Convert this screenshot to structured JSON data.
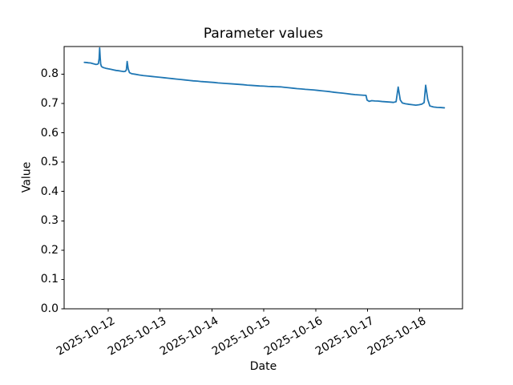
{
  "figure": {
    "kind": "matplotlib-line-plot"
  },
  "chart_data": {
    "type": "line",
    "title": "Parameter values",
    "xlabel": "Date",
    "ylabel": "Value",
    "line_color": "#1f77b4",
    "grid": false,
    "legend": null,
    "x_unit": "days since 2025-10-12",
    "xlim": [
      -0.85,
      6.83
    ],
    "ylim": [
      0,
      0.894
    ],
    "xticks": [
      {
        "t": 0,
        "label": "2025-10-12"
      },
      {
        "t": 1,
        "label": "2025-10-13"
      },
      {
        "t": 2,
        "label": "2025-10-14"
      },
      {
        "t": 3,
        "label": "2025-10-15"
      },
      {
        "t": 4,
        "label": "2025-10-16"
      },
      {
        "t": 5,
        "label": "2025-10-17"
      },
      {
        "t": 6,
        "label": "2025-10-18"
      }
    ],
    "yticks": [
      {
        "v": 0.0,
        "label": "0.0"
      },
      {
        "v": 0.1,
        "label": "0.1"
      },
      {
        "v": 0.2,
        "label": "0.2"
      },
      {
        "v": 0.3,
        "label": "0.3"
      },
      {
        "v": 0.4,
        "label": "0.4"
      },
      {
        "v": 0.5,
        "label": "0.5"
      },
      {
        "v": 0.6,
        "label": "0.6"
      },
      {
        "v": 0.7,
        "label": "0.7"
      },
      {
        "v": 0.8,
        "label": "0.8"
      }
    ],
    "points": [
      [
        -0.46,
        0.84
      ],
      [
        -0.42,
        0.8395
      ],
      [
        -0.38,
        0.8385
      ],
      [
        -0.34,
        0.838
      ],
      [
        -0.3,
        0.836
      ],
      [
        -0.27,
        0.8345
      ],
      [
        -0.24,
        0.833
      ],
      [
        -0.21,
        0.8335
      ],
      [
        -0.19,
        0.8355
      ],
      [
        -0.175,
        0.853
      ],
      [
        -0.165,
        0.889
      ],
      [
        -0.155,
        0.857
      ],
      [
        -0.145,
        0.834
      ],
      [
        -0.13,
        0.826
      ],
      [
        -0.1,
        0.8225
      ],
      [
        -0.05,
        0.82
      ],
      [
        0.0,
        0.818
      ],
      [
        0.05,
        0.8165
      ],
      [
        0.1,
        0.8145
      ],
      [
        0.15,
        0.8125
      ],
      [
        0.2,
        0.8115
      ],
      [
        0.25,
        0.81
      ],
      [
        0.3,
        0.8085
      ],
      [
        0.33,
        0.8095
      ],
      [
        0.35,
        0.8145
      ],
      [
        0.365,
        0.843
      ],
      [
        0.385,
        0.818
      ],
      [
        0.41,
        0.805
      ],
      [
        0.45,
        0.8015
      ],
      [
        0.52,
        0.7995
      ],
      [
        0.6,
        0.797
      ],
      [
        0.68,
        0.795
      ],
      [
        0.76,
        0.7935
      ],
      [
        0.84,
        0.792
      ],
      [
        0.92,
        0.7905
      ],
      [
        1.0,
        0.789
      ],
      [
        1.08,
        0.7875
      ],
      [
        1.16,
        0.786
      ],
      [
        1.24,
        0.7845
      ],
      [
        1.32,
        0.783
      ],
      [
        1.4,
        0.7815
      ],
      [
        1.48,
        0.78
      ],
      [
        1.56,
        0.7785
      ],
      [
        1.64,
        0.777
      ],
      [
        1.72,
        0.776
      ],
      [
        1.8,
        0.7745
      ],
      [
        1.88,
        0.7735
      ],
      [
        1.96,
        0.7725
      ],
      [
        2.04,
        0.7715
      ],
      [
        2.12,
        0.77
      ],
      [
        2.2,
        0.769
      ],
      [
        2.28,
        0.768
      ],
      [
        2.36,
        0.767
      ],
      [
        2.44,
        0.766
      ],
      [
        2.52,
        0.765
      ],
      [
        2.6,
        0.764
      ],
      [
        2.68,
        0.7625
      ],
      [
        2.76,
        0.7615
      ],
      [
        2.84,
        0.7605
      ],
      [
        2.92,
        0.7595
      ],
      [
        3.0,
        0.759
      ],
      [
        3.08,
        0.758
      ],
      [
        3.16,
        0.7575
      ],
      [
        3.24,
        0.757
      ],
      [
        3.32,
        0.7565
      ],
      [
        3.4,
        0.755
      ],
      [
        3.48,
        0.7535
      ],
      [
        3.56,
        0.752
      ],
      [
        3.64,
        0.7505
      ],
      [
        3.72,
        0.7495
      ],
      [
        3.8,
        0.748
      ],
      [
        3.88,
        0.747
      ],
      [
        3.96,
        0.746
      ],
      [
        4.04,
        0.7445
      ],
      [
        4.12,
        0.743
      ],
      [
        4.2,
        0.7415
      ],
      [
        4.28,
        0.74
      ],
      [
        4.36,
        0.738
      ],
      [
        4.44,
        0.7365
      ],
      [
        4.52,
        0.735
      ],
      [
        4.6,
        0.7335
      ],
      [
        4.68,
        0.7315
      ],
      [
        4.76,
        0.73
      ],
      [
        4.84,
        0.729
      ],
      [
        4.92,
        0.728
      ],
      [
        4.97,
        0.7275
      ],
      [
        4.99,
        0.7115
      ],
      [
        5.03,
        0.707
      ],
      [
        5.08,
        0.7095
      ],
      [
        5.14,
        0.7085
      ],
      [
        5.2,
        0.708
      ],
      [
        5.28,
        0.7065
      ],
      [
        5.36,
        0.7055
      ],
      [
        5.44,
        0.7045
      ],
      [
        5.5,
        0.7035
      ],
      [
        5.55,
        0.706
      ],
      [
        5.59,
        0.756
      ],
      [
        5.63,
        0.712
      ],
      [
        5.67,
        0.7015
      ],
      [
        5.73,
        0.699
      ],
      [
        5.8,
        0.697
      ],
      [
        5.87,
        0.6955
      ],
      [
        5.93,
        0.694
      ],
      [
        5.99,
        0.6955
      ],
      [
        6.05,
        0.698
      ],
      [
        6.09,
        0.703
      ],
      [
        6.12,
        0.762
      ],
      [
        6.16,
        0.714
      ],
      [
        6.2,
        0.6915
      ],
      [
        6.27,
        0.688
      ],
      [
        6.34,
        0.6865
      ],
      [
        6.41,
        0.686
      ],
      [
        6.48,
        0.685
      ]
    ]
  }
}
